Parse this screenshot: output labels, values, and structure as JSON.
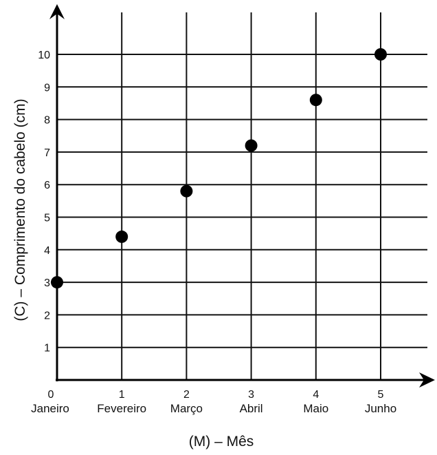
{
  "chart_data": {
    "type": "scatter",
    "xlabel": "(M) – Mês",
    "ylabel": "(C) – Comprimento do cabelo (cm)",
    "x_ticks": [
      "0",
      "1",
      "2",
      "3",
      "4",
      "5"
    ],
    "categories": [
      "Janeiro",
      "Fevereiro",
      "Março",
      "Abril",
      "Maio",
      "Junho"
    ],
    "y_ticks": [
      "1",
      "2",
      "3",
      "4",
      "5",
      "6",
      "7",
      "8",
      "9",
      "10"
    ],
    "xlim": [
      0,
      5.8
    ],
    "ylim": [
      0,
      11
    ],
    "grid": true,
    "x": [
      0,
      1,
      2,
      3,
      4,
      5
    ],
    "values": [
      3.0,
      4.4,
      5.8,
      7.2,
      8.6,
      10.0
    ],
    "colors": {
      "point": "#000000",
      "grid": "#111111"
    }
  }
}
